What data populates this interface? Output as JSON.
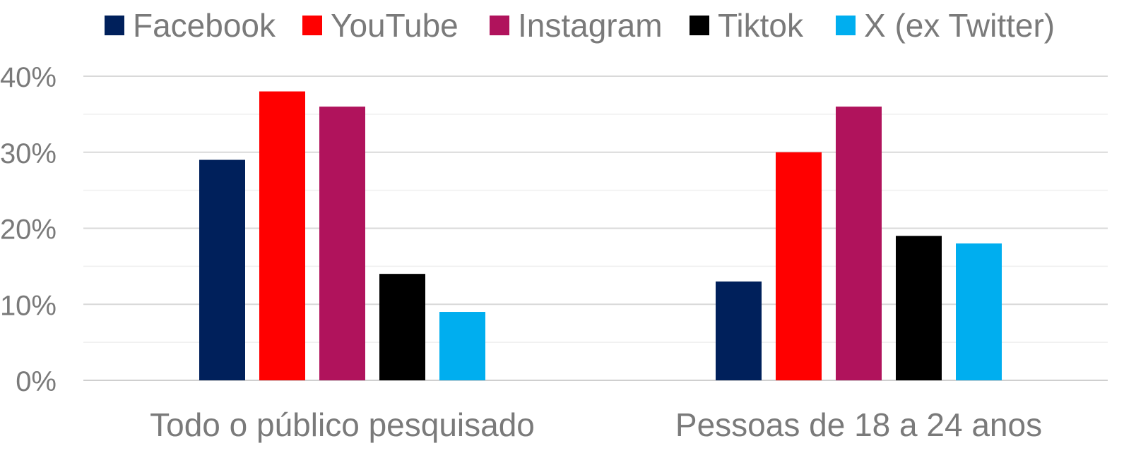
{
  "chart_data": {
    "type": "bar",
    "title": "",
    "xlabel": "",
    "ylabel": "",
    "categories": [
      "Todo o público pesquisado",
      "Pessoas de 18 a 24 anos"
    ],
    "series": [
      {
        "name": "Facebook",
        "color": "#00205b",
        "values": [
          29,
          13
        ]
      },
      {
        "name": "YouTube",
        "color": "#ff0000",
        "values": [
          38,
          30
        ]
      },
      {
        "name": "Instagram",
        "color": "#b0135c",
        "values": [
          36,
          36
        ]
      },
      {
        "name": "Tiktok",
        "color": "#000000",
        "values": [
          14,
          19
        ]
      },
      {
        "name": "X (ex Twitter)",
        "color": "#00aeef",
        "values": [
          9,
          18
        ]
      }
    ],
    "ylim": [
      0,
      40
    ],
    "yticks": [
      "0%",
      "10%",
      "20%",
      "30%",
      "40%"
    ],
    "grid": true,
    "legend_position": "top"
  }
}
